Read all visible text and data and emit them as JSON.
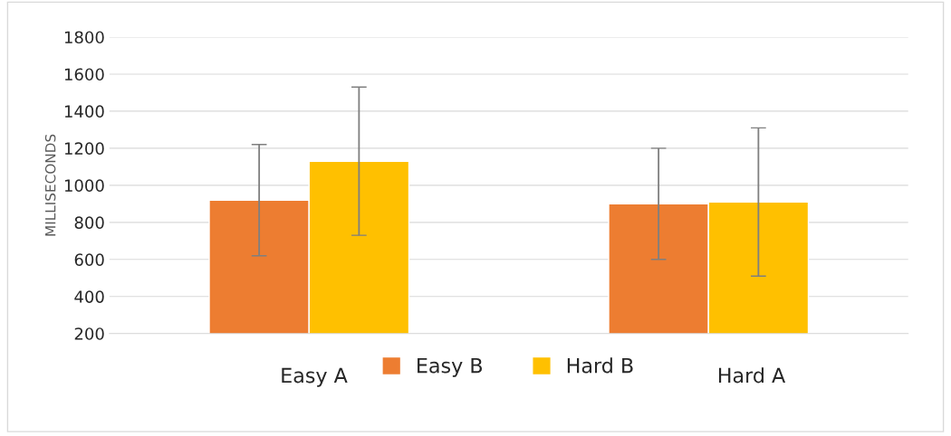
{
  "chart_data": {
    "type": "bar",
    "ylabel": "MILLISECONDS",
    "categories": [
      null,
      null
    ],
    "series": [
      {
        "name": "Easy B",
        "color": "#ed7d31",
        "values": [
          920,
          900
        ],
        "errors": [
          300,
          300
        ]
      },
      {
        "name": "Hard B",
        "color": "#ffc000",
        "values": [
          1130,
          910
        ],
        "errors": [
          400,
          400
        ]
      }
    ],
    "annotations": [
      "Easy A",
      "Hard A"
    ],
    "ylim": [
      200,
      1800
    ],
    "yticks": [
      200,
      400,
      600,
      800,
      1000,
      1200,
      1400,
      1600,
      1800
    ],
    "grid": "y",
    "legend": "bottom"
  }
}
